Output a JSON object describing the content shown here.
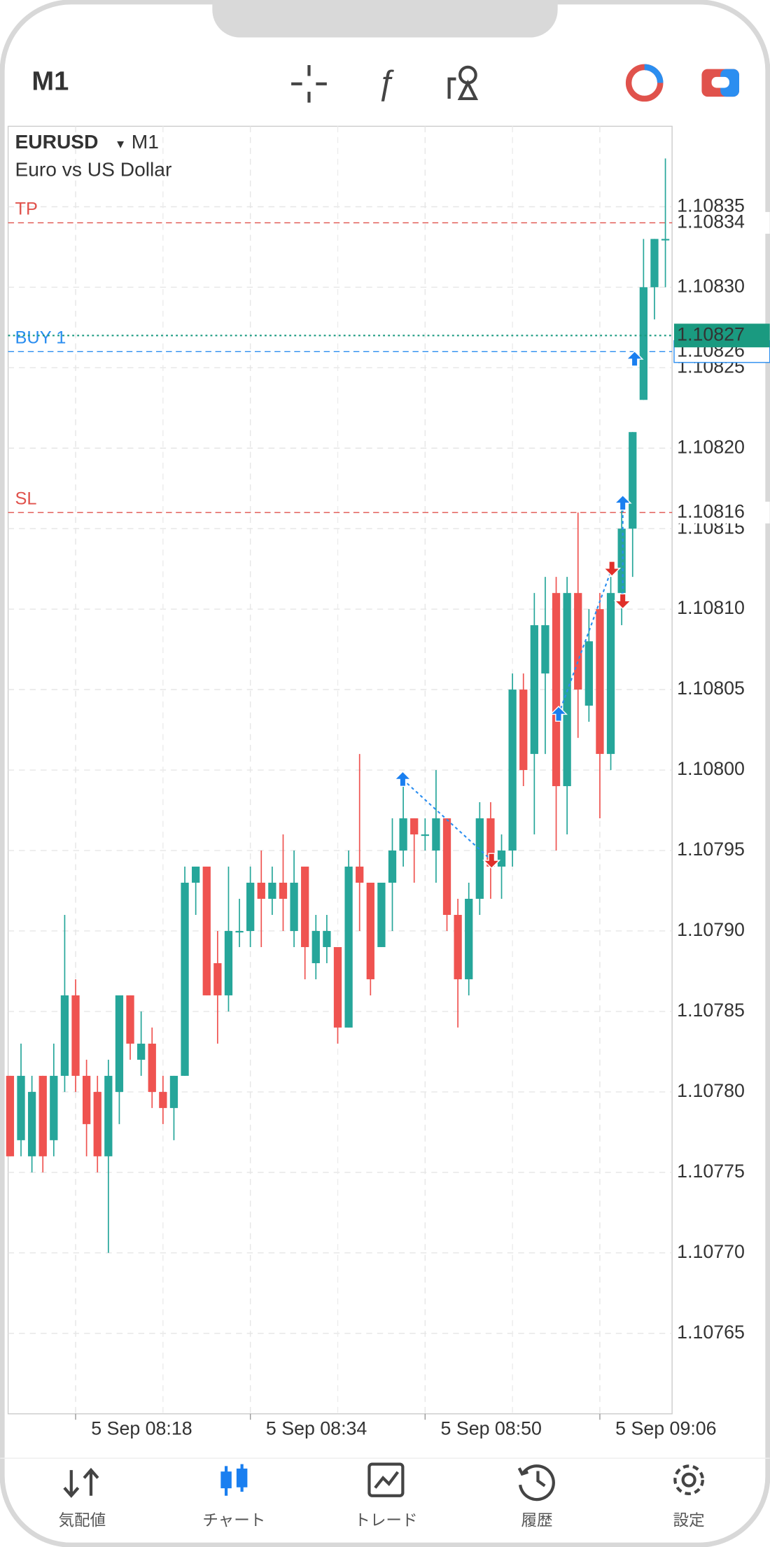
{
  "header": {
    "timeframe": "M1"
  },
  "chart_data": {
    "type": "candlestick",
    "symbol": "EURUSD",
    "timeframe": "M1",
    "subtitle": "Euro vs US Dollar",
    "x": [
      null,
      null,
      null,
      null,
      null,
      null,
      "5 Sep 08:18",
      null,
      null,
      null,
      null,
      null,
      null,
      null,
      null,
      null,
      null,
      null,
      null,
      null,
      null,
      null,
      "5 Sep 08:34",
      null,
      null,
      null,
      null,
      null,
      null,
      null,
      null,
      null,
      null,
      null,
      null,
      null,
      null,
      null,
      "5 Sep 08:50",
      null,
      null,
      null,
      null,
      null,
      null,
      null,
      null,
      null,
      null,
      null,
      null,
      null,
      null,
      null,
      "5 Sep 09:06",
      null,
      null,
      null,
      null,
      null,
      null
    ],
    "open": [
      1.10781,
      1.10777,
      1.10776,
      1.10781,
      1.10777,
      1.10781,
      1.10786,
      1.10781,
      1.1078,
      1.10776,
      1.1078,
      1.10786,
      1.10782,
      1.10783,
      1.1078,
      1.10779,
      1.10781,
      1.10793,
      1.10794,
      1.10788,
      1.10786,
      1.1079,
      1.1079,
      1.10793,
      1.10792,
      1.10793,
      1.1079,
      1.10794,
      1.10788,
      1.10789,
      1.10789,
      1.10784,
      1.10794,
      1.10793,
      1.10789,
      1.10793,
      1.10795,
      1.10797,
      1.10796,
      1.10795,
      1.10797,
      1.10791,
      1.10787,
      1.10792,
      1.10797,
      1.10794,
      1.10795,
      1.10805,
      1.10801,
      1.10806,
      1.10811,
      1.10799,
      1.10811,
      1.10804,
      1.1081,
      1.10801,
      1.10811,
      1.10815,
      1.10823,
      1.1083,
      1.10833
    ],
    "high": [
      1.10781,
      1.10783,
      1.10781,
      1.10781,
      1.10783,
      1.10791,
      1.10787,
      1.10782,
      1.10781,
      1.10782,
      1.10786,
      1.10786,
      1.10785,
      1.10784,
      1.10781,
      1.10781,
      1.10794,
      1.10794,
      1.10794,
      1.1079,
      1.10794,
      1.10792,
      1.10794,
      1.10795,
      1.10794,
      1.10796,
      1.10795,
      1.10794,
      1.10791,
      1.10791,
      1.10789,
      1.10795,
      1.10801,
      1.10793,
      1.10793,
      1.10797,
      1.10799,
      1.10797,
      1.10797,
      1.108,
      1.10797,
      1.10792,
      1.10793,
      1.10798,
      1.10798,
      1.10796,
      1.10806,
      1.10806,
      1.10811,
      1.10812,
      1.10812,
      1.10812,
      1.10816,
      1.1081,
      1.10811,
      1.10812,
      1.10817,
      1.10821,
      1.10833,
      1.10833,
      1.10838
    ],
    "low": [
      1.10776,
      1.10776,
      1.10775,
      1.10775,
      1.10776,
      1.1078,
      1.1078,
      1.10776,
      1.10775,
      1.1077,
      1.10778,
      1.10782,
      1.10781,
      1.10779,
      1.10778,
      1.10777,
      1.10781,
      1.10791,
      1.10786,
      1.10783,
      1.10785,
      1.10789,
      1.10789,
      1.10789,
      1.10791,
      1.1079,
      1.10789,
      1.10787,
      1.10787,
      1.10788,
      1.10783,
      1.10784,
      1.1079,
      1.10786,
      1.10789,
      1.1079,
      1.10794,
      1.10793,
      1.10795,
      1.10793,
      1.1079,
      1.10784,
      1.10786,
      1.10791,
      1.10792,
      1.10792,
      1.10794,
      1.10799,
      1.10796,
      1.10801,
      1.10795,
      1.10796,
      1.10802,
      1.10803,
      1.10797,
      1.108,
      1.10809,
      1.10812,
      1.10823,
      1.10828,
      1.1083
    ],
    "close": [
      1.10776,
      1.10781,
      1.1078,
      1.10776,
      1.10781,
      1.10786,
      1.10781,
      1.10778,
      1.10776,
      1.10781,
      1.10786,
      1.10783,
      1.10783,
      1.1078,
      1.10779,
      1.10781,
      1.10793,
      1.10794,
      1.10786,
      1.10786,
      1.1079,
      1.1079,
      1.10793,
      1.10792,
      1.10793,
      1.10792,
      1.10793,
      1.10789,
      1.1079,
      1.1079,
      1.10784,
      1.10794,
      1.10793,
      1.10787,
      1.10793,
      1.10795,
      1.10797,
      1.10796,
      1.10796,
      1.10797,
      1.10791,
      1.10787,
      1.10792,
      1.10797,
      1.10794,
      1.10795,
      1.10805,
      1.108,
      1.10809,
      1.10809,
      1.10799,
      1.10811,
      1.10805,
      1.10808,
      1.10801,
      1.10811,
      1.10815,
      1.10821,
      1.1083,
      1.10833,
      1.10833
    ],
    "up_color": "#26a69a",
    "down_color": "#ef5350",
    "ylim": [
      1.1076,
      1.1084
    ],
    "yticks": [
      1.10835,
      {
        "value": 1.1083,
        "label": "1.10830"
      },
      1.10825,
      {
        "value": 1.1082,
        "label": "1.10820"
      },
      1.10815,
      {
        "value": 1.1081,
        "label": "1.10810"
      },
      1.10805,
      {
        "value": 1.108,
        "label": "1.10800"
      },
      1.10795,
      {
        "value": 1.1079,
        "label": "1.10790"
      },
      1.10785,
      {
        "value": 1.1078,
        "label": "1.10780"
      },
      1.10775,
      {
        "value": 1.1077,
        "label": "1.10770"
      },
      1.10765
    ],
    "grid": true,
    "levels": [
      {
        "name": "TP",
        "value": 1.10834,
        "color": "#e0524c"
      },
      {
        "name": "BUY 1",
        "value": 1.10826,
        "color": "#2b8ef0"
      },
      {
        "name": "SL",
        "value": 1.10816,
        "color": "#e0524c"
      }
    ],
    "current_price": {
      "value": 1.10827,
      "color": "#1a9a80"
    }
  },
  "tabs": [
    {
      "label": "気配値"
    },
    {
      "label": "チャート"
    },
    {
      "label": "トレード"
    },
    {
      "label": "履歴"
    },
    {
      "label": "設定"
    }
  ]
}
